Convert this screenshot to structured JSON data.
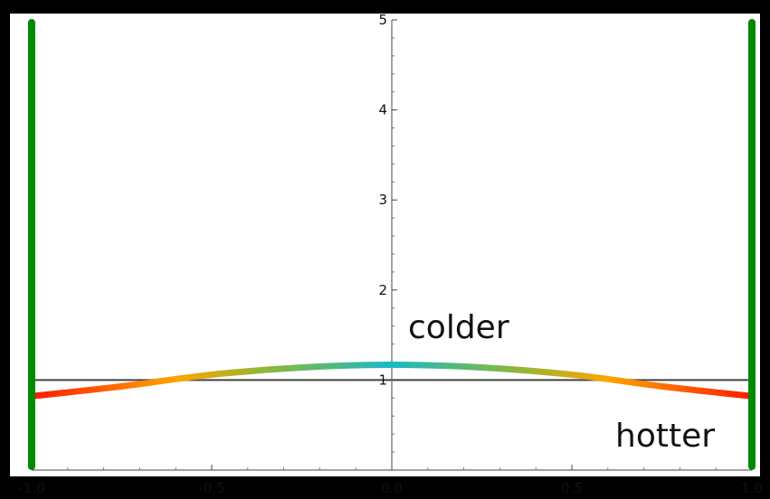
{
  "chart_data": {
    "type": "line",
    "title": "",
    "xlabel": "",
    "ylabel": "",
    "xlim": [
      -1.0,
      1.0
    ],
    "ylim": [
      0,
      5
    ],
    "grid": false,
    "x_ticks": [
      "-1.0",
      "-0.5",
      "0.0",
      "0.5",
      "1.0"
    ],
    "x_tick_values": [
      -1.0,
      -0.5,
      0.0,
      0.5,
      1.0
    ],
    "y_ticks": [
      "1",
      "2",
      "3",
      "4",
      "5"
    ],
    "y_tick_values": [
      1,
      2,
      3,
      4,
      5
    ],
    "annotations": [
      "colder",
      "hotter"
    ],
    "series": [
      {
        "color": "#8a8a8a",
        "x": [
          -1.0,
          1.0
        ],
        "y": [
          1.0,
          1.0
        ]
      },
      {
        "colors": [
          "#ff1a00",
          "#ffa500",
          "#8ab83a",
          "#1ab8c8"
        ],
        "x": [
          -1.0,
          -0.75,
          -0.5,
          -0.25,
          0.0,
          0.25,
          0.5,
          0.75,
          1.0
        ],
        "y": [
          0.82,
          0.93,
          1.06,
          1.14,
          1.17,
          1.14,
          1.06,
          0.93,
          0.82
        ]
      }
    ],
    "boundaries": {
      "color": "#008a00",
      "x": [
        -1.0,
        1.0
      ],
      "y_range": [
        0.04,
        4.97
      ]
    }
  }
}
